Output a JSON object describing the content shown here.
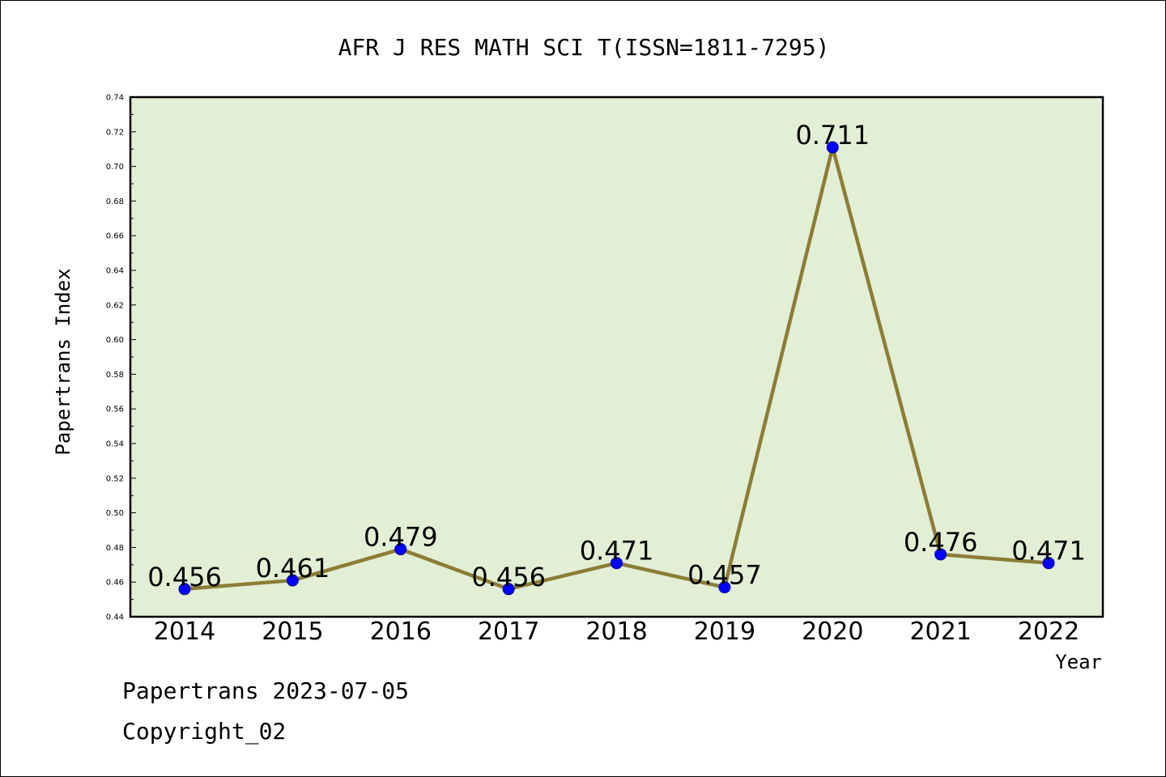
{
  "chart_data": {
    "type": "line",
    "title": "AFR J RES MATH SCI T(ISSN=1811-7295)",
    "xlabel": "Year",
    "ylabel": "Papertrans Index",
    "categories": [
      "2014",
      "2015",
      "2016",
      "2017",
      "2018",
      "2019",
      "2020",
      "2021",
      "2022"
    ],
    "series": [
      {
        "values": [
          0.456,
          0.461,
          0.479,
          0.456,
          0.471,
          0.457,
          0.711,
          0.476,
          0.471
        ],
        "labels": [
          "0.456",
          "0.461",
          "0.479",
          "0.456",
          "0.471",
          "0.457",
          "0.711",
          "0.476",
          "0.471"
        ]
      }
    ],
    "ylim": [
      0.44,
      0.74
    ],
    "yticks": [
      "0.44",
      "0.46",
      "0.48",
      "0.50",
      "0.52",
      "0.54",
      "0.56",
      "0.58",
      "0.60",
      "0.62",
      "0.64",
      "0.66",
      "0.68",
      "0.70",
      "0.72",
      "0.74"
    ],
    "grid": false,
    "colors": {
      "plot_background": "#e2efd5",
      "line": "#8c7d36",
      "marker_fill": "#0000ff",
      "marker_stroke": "#00008b",
      "frame": "#000000"
    }
  },
  "footer": {
    "line1": "Papertrans 2023-07-05",
    "line2": "Copyright_02"
  }
}
